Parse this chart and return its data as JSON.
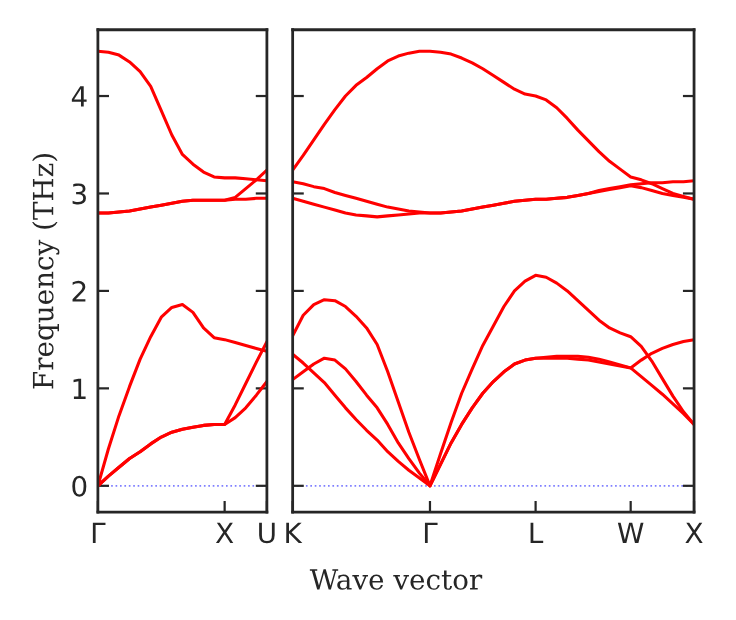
{
  "chart_data": [
    {
      "type": "line",
      "ylabel": "Frequency (THz)",
      "categories": [
        "Γ",
        null,
        null,
        null,
        null,
        null,
        null,
        null,
        null,
        null,
        null,
        null,
        "X",
        null,
        null,
        null,
        "U"
      ],
      "ylim": [
        -0.27,
        4.68
      ],
      "yticks": [
        0,
        1,
        2,
        3,
        4
      ],
      "grid": false,
      "legend": false,
      "line_style": "solid",
      "marker": "none",
      "ref_lines": [
        {
          "axis": "y",
          "value": 0,
          "color": "#7f7fff",
          "line_style": "dotted"
        }
      ],
      "series": [
        {
          "color": "#ff0000",
          "values": [
            0,
            0.1,
            0.19,
            0.28,
            0.35,
            0.43,
            0.5,
            0.55,
            0.58,
            0.6,
            0.62,
            0.63,
            0.63,
            0.7,
            0.8,
            0.93,
            1.07
          ]
        },
        {
          "color": "#ff0000",
          "values": [
            0,
            0.1,
            0.19,
            0.28,
            0.35,
            0.43,
            0.5,
            0.55,
            0.58,
            0.6,
            0.62,
            0.63,
            0.63,
            0.83,
            1.05,
            1.27,
            1.48
          ]
        },
        {
          "color": "#ff0000",
          "values": [
            0,
            0.38,
            0.72,
            1.02,
            1.3,
            1.53,
            1.73,
            1.83,
            1.86,
            1.78,
            1.62,
            1.52,
            1.5,
            1.47,
            1.44,
            1.41,
            1.38
          ]
        },
        {
          "color": "#ff0000",
          "values": [
            2.8,
            2.8,
            2.81,
            2.82,
            2.84,
            2.86,
            2.88,
            2.9,
            2.92,
            2.93,
            2.93,
            2.93,
            2.93,
            2.94,
            2.94,
            2.95,
            2.95
          ]
        },
        {
          "color": "#ff0000",
          "values": [
            2.8,
            2.8,
            2.81,
            2.82,
            2.84,
            2.86,
            2.88,
            2.9,
            2.92,
            2.93,
            2.93,
            2.93,
            2.93,
            2.96,
            3.05,
            3.14,
            3.24
          ]
        },
        {
          "color": "#ff0000",
          "values": [
            4.46,
            4.45,
            4.42,
            4.35,
            4.25,
            4.1,
            3.85,
            3.6,
            3.4,
            3.3,
            3.22,
            3.17,
            3.16,
            3.16,
            3.15,
            3.14,
            3.13
          ]
        }
      ]
    },
    {
      "type": "line",
      "xlabel": "Wave vector",
      "categories": [
        "K",
        null,
        null,
        null,
        null,
        null,
        null,
        null,
        null,
        null,
        null,
        null,
        null,
        "Γ",
        null,
        null,
        null,
        null,
        null,
        null,
        null,
        null,
        null,
        "L",
        null,
        null,
        null,
        null,
        null,
        null,
        null,
        null,
        "W",
        null,
        null,
        null,
        null,
        null,
        "X"
      ],
      "ylim": [
        -0.27,
        4.68
      ],
      "yticks": [
        0,
        1,
        2,
        3,
        4
      ],
      "tick_labels": "x",
      "grid": false,
      "legend": false,
      "line_style": "solid",
      "marker": "none",
      "ref_lines": [
        {
          "axis": "y",
          "value": 0,
          "color": "#7f7fff",
          "line_style": "dotted"
        }
      ],
      "series": [
        {
          "color": "#ff0000",
          "values": [
            1.09,
            1.17,
            1.25,
            1.31,
            1.29,
            1.2,
            1.07,
            0.93,
            0.8,
            0.63,
            0.44,
            0.28,
            0.13,
            0,
            0.22,
            0.44,
            0.63,
            0.8,
            0.95,
            1.07,
            1.17,
            1.25,
            1.29,
            1.31,
            1.32,
            1.33,
            1.33,
            1.33,
            1.32,
            1.3,
            1.27,
            1.24,
            1.21,
            1.12,
            1.03,
            0.94,
            0.84,
            0.74,
            0.63
          ]
        },
        {
          "color": "#ff0000",
          "values": [
            1.35,
            1.26,
            1.16,
            1.06,
            0.93,
            0.8,
            0.68,
            0.57,
            0.47,
            0.35,
            0.25,
            0.16,
            0.08,
            0,
            0.22,
            0.44,
            0.63,
            0.8,
            0.95,
            1.07,
            1.17,
            1.25,
            1.29,
            1.31,
            1.31,
            1.31,
            1.31,
            1.3,
            1.29,
            1.27,
            1.25,
            1.23,
            1.21,
            1.29,
            1.36,
            1.41,
            1.45,
            1.48,
            1.5
          ]
        },
        {
          "color": "#ff0000",
          "values": [
            1.54,
            1.75,
            1.86,
            1.91,
            1.9,
            1.84,
            1.74,
            1.62,
            1.45,
            1.17,
            0.86,
            0.55,
            0.27,
            0,
            0.33,
            0.65,
            0.95,
            1.2,
            1.44,
            1.64,
            1.84,
            2.0,
            2.1,
            2.16,
            2.14,
            2.08,
            2.0,
            1.9,
            1.8,
            1.7,
            1.62,
            1.57,
            1.53,
            1.43,
            1.28,
            1.1,
            0.92,
            0.76,
            0.63
          ]
        },
        {
          "color": "#ff0000",
          "values": [
            2.95,
            2.92,
            2.89,
            2.86,
            2.83,
            2.8,
            2.78,
            2.77,
            2.76,
            2.77,
            2.78,
            2.79,
            2.8,
            2.8,
            2.8,
            2.81,
            2.82,
            2.84,
            2.86,
            2.88,
            2.9,
            2.92,
            2.93,
            2.94,
            2.94,
            2.95,
            2.96,
            2.98,
            3.0,
            3.02,
            3.04,
            3.06,
            3.08,
            3.06,
            3.03,
            3.0,
            2.98,
            2.96,
            2.94
          ]
        },
        {
          "color": "#ff0000",
          "values": [
            3.12,
            3.1,
            3.07,
            3.05,
            3.01,
            2.98,
            2.95,
            2.92,
            2.89,
            2.86,
            2.84,
            2.82,
            2.81,
            2.8,
            2.8,
            2.81,
            2.82,
            2.84,
            2.86,
            2.88,
            2.9,
            2.92,
            2.93,
            2.94,
            2.94,
            2.95,
            2.96,
            2.98,
            3.0,
            3.03,
            3.05,
            3.07,
            3.09,
            3.1,
            3.11,
            3.11,
            3.12,
            3.12,
            3.13
          ]
        },
        {
          "color": "#ff0000",
          "values": [
            3.24,
            3.39,
            3.55,
            3.71,
            3.86,
            4.0,
            4.11,
            4.19,
            4.28,
            4.36,
            4.41,
            4.44,
            4.46,
            4.46,
            4.45,
            4.43,
            4.39,
            4.34,
            4.28,
            4.21,
            4.14,
            4.07,
            4.02,
            4.0,
            3.96,
            3.88,
            3.77,
            3.65,
            3.54,
            3.43,
            3.33,
            3.25,
            3.17,
            3.14,
            3.1,
            3.05,
            3.0,
            2.97,
            2.94
          ]
        }
      ]
    }
  ]
}
